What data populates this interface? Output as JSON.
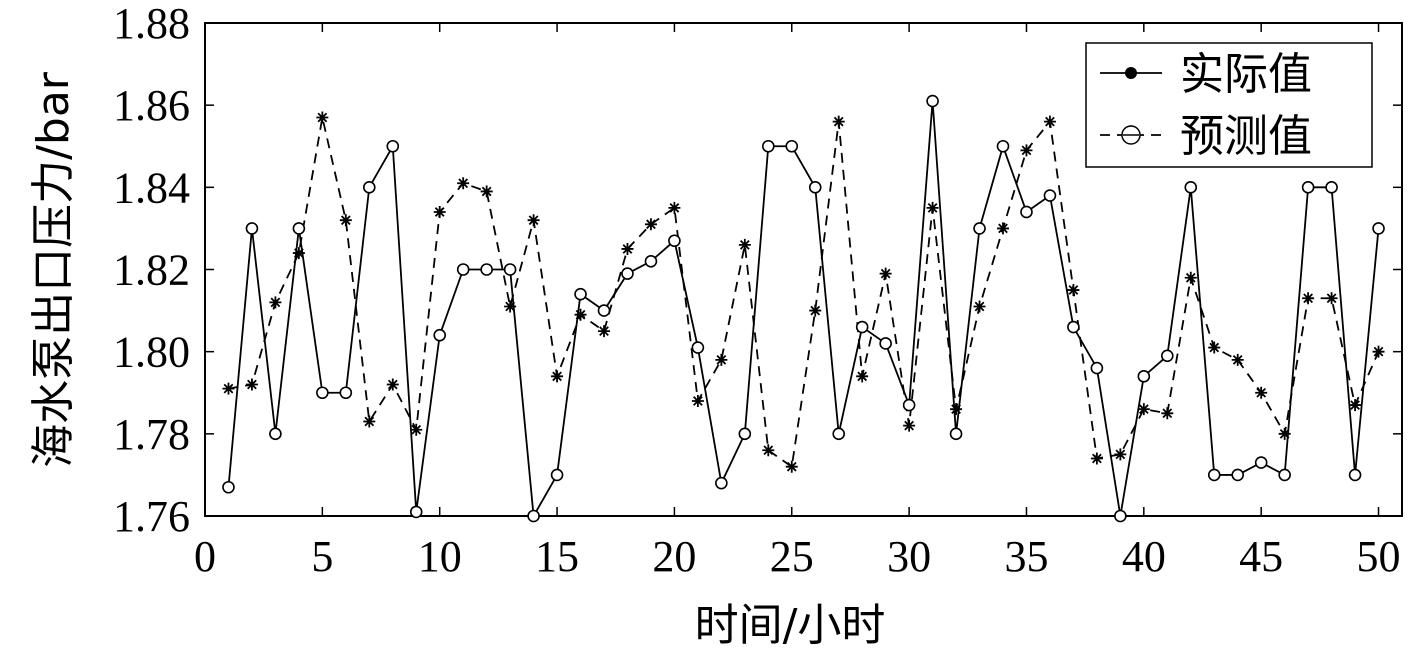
{
  "chart_data": {
    "type": "line",
    "xlabel": "时间/小时",
    "ylabel": "海水泵出口压力/bar",
    "xlim": [
      0,
      51
    ],
    "ylim": [
      1.76,
      1.88
    ],
    "xticks": [
      0,
      5,
      10,
      15,
      20,
      25,
      30,
      35,
      40,
      45,
      50
    ],
    "xtick_labels": [
      "0",
      "5",
      "10",
      "15",
      "20",
      "25",
      "30",
      "35",
      "40",
      "45",
      "50"
    ],
    "yticks": [
      1.76,
      1.78,
      1.8,
      1.82,
      1.84,
      1.86,
      1.88
    ],
    "ytick_labels": [
      "1.76",
      "1.78",
      "1.80",
      "1.82",
      "1.84",
      "1.86",
      "1.88"
    ],
    "grid": false,
    "legend_position": "top-right",
    "x": [
      1,
      2,
      3,
      4,
      5,
      6,
      7,
      8,
      9,
      10,
      11,
      12,
      13,
      14,
      15,
      16,
      17,
      18,
      19,
      20,
      21,
      22,
      23,
      24,
      25,
      26,
      27,
      28,
      29,
      30,
      31,
      32,
      33,
      34,
      35,
      36,
      37,
      38,
      39,
      40,
      41,
      42,
      43,
      44,
      45,
      46,
      47,
      48,
      49,
      50
    ],
    "series": [
      {
        "name": "实际值",
        "style": "solid",
        "marker": "circle",
        "values": [
          1.767,
          1.83,
          1.78,
          1.83,
          1.79,
          1.79,
          1.84,
          1.85,
          1.761,
          1.804,
          1.82,
          1.82,
          1.82,
          1.76,
          1.77,
          1.814,
          1.81,
          1.819,
          1.822,
          1.827,
          1.801,
          1.768,
          1.78,
          1.85,
          1.85,
          1.84,
          1.78,
          1.806,
          1.802,
          1.787,
          1.861,
          1.78,
          1.83,
          1.85,
          1.834,
          1.838,
          1.806,
          1.796,
          1.76,
          1.794,
          1.799,
          1.84,
          1.77,
          1.77,
          1.773,
          1.77,
          1.84,
          1.84,
          1.77,
          1.83
        ]
      },
      {
        "name": "预测值",
        "style": "dashed",
        "marker": "star",
        "values": [
          1.791,
          1.792,
          1.812,
          1.824,
          1.857,
          1.832,
          1.783,
          1.792,
          1.781,
          1.834,
          1.841,
          1.839,
          1.811,
          1.832,
          1.794,
          1.809,
          1.805,
          1.825,
          1.831,
          1.835,
          1.788,
          1.798,
          1.826,
          1.776,
          1.772,
          1.81,
          1.856,
          1.794,
          1.819,
          1.782,
          1.835,
          1.786,
          1.811,
          1.83,
          1.849,
          1.856,
          1.815,
          1.774,
          1.775,
          1.786,
          1.785,
          1.818,
          1.801,
          1.798,
          1.79,
          1.78,
          1.813,
          1.813,
          1.787,
          1.8
        ]
      }
    ]
  }
}
